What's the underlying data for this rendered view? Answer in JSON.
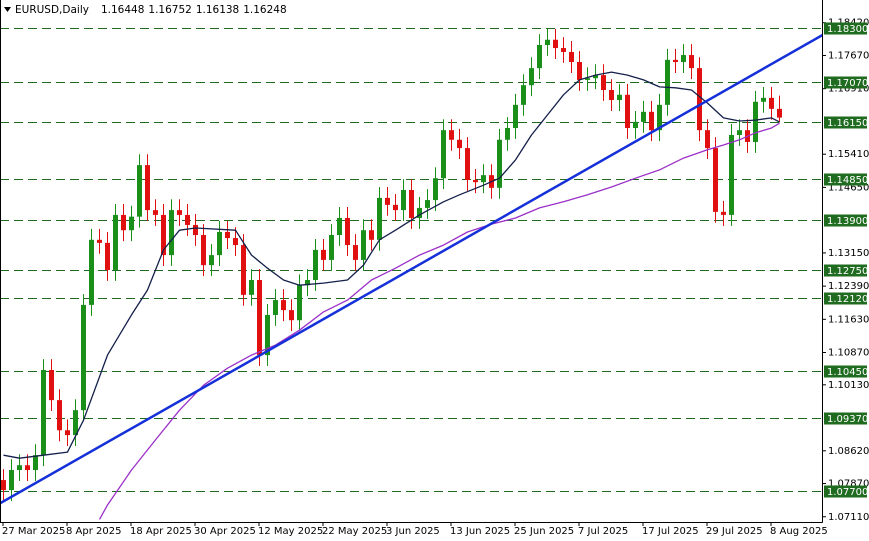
{
  "chart_data": {
    "type": "candlestick",
    "title": "EURUSD,Daily",
    "categories": [
      "27 Mar 2025",
      null,
      null,
      null,
      null,
      null,
      null,
      null,
      "8 Apr 2025",
      null,
      null,
      null,
      null,
      null,
      null,
      null,
      "18 Apr 2025",
      null,
      null,
      null,
      null,
      null,
      null,
      null,
      "30 Apr 2025",
      null,
      null,
      null,
      null,
      null,
      null,
      null,
      "12 May 2025",
      null,
      null,
      null,
      null,
      null,
      null,
      null,
      "22 May 2025",
      null,
      null,
      null,
      null,
      null,
      null,
      null,
      "3 Jun 2025",
      null,
      null,
      null,
      null,
      null,
      null,
      null,
      "13 Jun 2025",
      null,
      null,
      null,
      null,
      null,
      null,
      null,
      "25 Jun 2025",
      null,
      null,
      null,
      null,
      null,
      null,
      null,
      "7 Jul 2025",
      null,
      null,
      null,
      null,
      null,
      null,
      null,
      "17 Jul 2025",
      null,
      null,
      null,
      null,
      null,
      null,
      null,
      "29 Jul 2025",
      null,
      null,
      null,
      null,
      null,
      null,
      null,
      "8 Aug 2025",
      null
    ],
    "open": [
      1.0795,
      1.0772,
      1.0818,
      1.0829,
      1.0818,
      1.0852,
      1.1047,
      1.0978,
      1.0909,
      1.0898,
      1.0955,
      1.1196,
      1.1345,
      1.1338,
      1.1276,
      1.1402,
      1.1367,
      1.1398,
      1.1516,
      1.1413,
      1.1402,
      1.131,
      1.1413,
      1.1402,
      1.1379,
      1.1356,
      1.1287,
      1.131,
      1.1363,
      1.1349,
      1.1333,
      1.1219,
      1.1253,
      1.1081,
      1.1173,
      1.1207,
      1.1184,
      1.1161,
      1.1241,
      1.1253,
      1.1322,
      1.1299,
      1.1356,
      1.1395,
      1.1333,
      1.1299,
      1.1367,
      1.1345,
      1.1441,
      1.1425,
      1.1413,
      1.1459,
      1.1395,
      1.1418,
      1.1436,
      1.1486,
      1.1596,
      1.1574,
      1.1555,
      1.1482,
      1.1477,
      1.1493,
      1.1464,
      1.1574,
      1.1601,
      1.1654,
      1.1699,
      1.1738,
      1.1791,
      1.1803,
      1.1784,
      1.1775,
      1.1752,
      1.1711,
      1.1715,
      1.1722,
      1.1688,
      1.1665,
      1.1677,
      1.1601,
      1.1615,
      1.1638,
      1.1596,
      1.1654,
      1.1757,
      1.1752,
      1.1768,
      1.1738,
      1.1596,
      1.1555,
      1.1409,
      1.1402,
      1.1585,
      1.1596,
      1.1569,
      1.1661,
      1.167,
      1.16448
    ],
    "high": [
      1.082,
      1.0843,
      1.0854,
      1.0854,
      1.0877,
      1.1072,
      1.1072,
      1.1003,
      1.0934,
      1.098,
      1.1221,
      1.137,
      1.137,
      1.1363,
      1.1427,
      1.1427,
      1.1423,
      1.1541,
      1.1541,
      1.1438,
      1.1427,
      1.1438,
      1.1438,
      1.1427,
      1.1404,
      1.1381,
      1.1335,
      1.1388,
      1.1388,
      1.1374,
      1.1358,
      1.1278,
      1.1278,
      1.1198,
      1.1232,
      1.1232,
      1.1209,
      1.1266,
      1.1278,
      1.1347,
      1.1347,
      1.1381,
      1.142,
      1.142,
      1.1358,
      1.1392,
      1.1392,
      1.1466,
      1.1466,
      1.145,
      1.1484,
      1.1484,
      1.1443,
      1.1461,
      1.1511,
      1.1621,
      1.1621,
      1.1599,
      1.158,
      1.1507,
      1.1518,
      1.1518,
      1.1599,
      1.1626,
      1.1679,
      1.1724,
      1.1763,
      1.1816,
      1.1828,
      1.1828,
      1.1809,
      1.18,
      1.1777,
      1.174,
      1.1747,
      1.1747,
      1.1713,
      1.1702,
      1.1702,
      1.164,
      1.1663,
      1.1663,
      1.1679,
      1.1782,
      1.1782,
      1.1793,
      1.1793,
      1.1763,
      1.1621,
      1.158,
      1.1434,
      1.161,
      1.1621,
      1.1621,
      1.1686,
      1.1695,
      1.1695,
      1.16752
    ],
    "low": [
      1.0747,
      1.0747,
      1.0793,
      1.0793,
      1.0793,
      1.0827,
      1.0953,
      1.0884,
      1.0873,
      1.0873,
      1.093,
      1.1171,
      1.1313,
      1.1251,
      1.1251,
      1.1342,
      1.1342,
      1.1373,
      1.1388,
      1.1377,
      1.1285,
      1.1285,
      1.1377,
      1.1354,
      1.1331,
      1.1262,
      1.1262,
      1.1285,
      1.1324,
      1.1308,
      1.1194,
      1.1194,
      1.1056,
      1.1056,
      1.1148,
      1.1159,
      1.1136,
      1.1136,
      1.1216,
      1.1228,
      1.1274,
      1.1274,
      1.1331,
      1.1308,
      1.1274,
      1.1274,
      1.132,
      1.132,
      1.14,
      1.1388,
      1.1388,
      1.137,
      1.137,
      1.1393,
      1.1411,
      1.1461,
      1.1549,
      1.153,
      1.1457,
      1.1452,
      1.1452,
      1.1439,
      1.1439,
      1.1549,
      1.1576,
      1.1629,
      1.1674,
      1.1713,
      1.1766,
      1.1759,
      1.175,
      1.1727,
      1.1686,
      1.1686,
      1.169,
      1.1663,
      1.164,
      1.164,
      1.1576,
      1.1576,
      1.159,
      1.1571,
      1.1571,
      1.1629,
      1.1727,
      1.1727,
      1.1713,
      1.1571,
      1.153,
      1.1384,
      1.1377,
      1.1377,
      1.156,
      1.1544,
      1.1544,
      1.1636,
      1.162,
      1.16138
    ],
    "close": [
      1.0772,
      1.0818,
      1.0829,
      1.0818,
      1.0852,
      1.1047,
      1.0978,
      1.0909,
      1.0898,
      1.0955,
      1.1196,
      1.1345,
      1.1338,
      1.1276,
      1.1402,
      1.1367,
      1.1398,
      1.1516,
      1.1413,
      1.1402,
      1.131,
      1.1413,
      1.1402,
      1.1379,
      1.1356,
      1.1287,
      1.131,
      1.1363,
      1.1349,
      1.1333,
      1.1219,
      1.1253,
      1.1081,
      1.1173,
      1.1207,
      1.1184,
      1.1161,
      1.1241,
      1.1253,
      1.1322,
      1.1299,
      1.1356,
      1.1395,
      1.1333,
      1.1299,
      1.1367,
      1.1345,
      1.1441,
      1.1425,
      1.1413,
      1.1459,
      1.1395,
      1.1418,
      1.1436,
      1.1486,
      1.1596,
      1.1574,
      1.1555,
      1.1482,
      1.1477,
      1.1493,
      1.1464,
      1.1574,
      1.1601,
      1.1654,
      1.1699,
      1.1738,
      1.1791,
      1.1803,
      1.1784,
      1.1775,
      1.1752,
      1.1711,
      1.1715,
      1.1722,
      1.1688,
      1.1665,
      1.1677,
      1.1601,
      1.1615,
      1.1638,
      1.1596,
      1.1654,
      1.1757,
      1.1752,
      1.1768,
      1.1738,
      1.1596,
      1.1555,
      1.1409,
      1.1402,
      1.1585,
      1.1596,
      1.1569,
      1.1661,
      1.167,
      1.16448,
      1.16248
    ],
    "up_color": "#1a8f1a",
    "down_color": "#e01010",
    "ylim": [
      1.0699,
      1.1894
    ],
    "yticks": [
      {
        "value": 1.1842,
        "label": "1.18420"
      },
      {
        "value": 1.1767,
        "label": "1.17670"
      },
      {
        "value": 1.1691,
        "label": "1.16910"
      },
      {
        "value": 1.1541,
        "label": "1.15410"
      },
      {
        "value": 1.1465,
        "label": "1.14650"
      },
      {
        "value": 1.1315,
        "label": "1.13150"
      },
      {
        "value": 1.1239,
        "label": "1.12390"
      },
      {
        "value": 1.1163,
        "label": "1.11630"
      },
      {
        "value": 1.1087,
        "label": "1.10870"
      },
      {
        "value": 1.1013,
        "label": "1.10130"
      },
      {
        "value": 1.0862,
        "label": "1.08620"
      },
      {
        "value": 1.0787,
        "label": "1.07870"
      },
      {
        "value": 1.0711,
        "label": "1.07110"
      }
    ],
    "levels": [
      {
        "value": 1.183,
        "label": "1.18300"
      },
      {
        "value": 1.1707,
        "label": "1.17070"
      },
      {
        "value": 1.1615,
        "label": "1.16150"
      },
      {
        "value": 1.1485,
        "label": "1.14850"
      },
      {
        "value": 1.139,
        "label": "1.13900"
      },
      {
        "value": 1.1275,
        "label": "1.12750"
      },
      {
        "value": 1.1212,
        "label": "1.12120"
      },
      {
        "value": 1.1045,
        "label": "1.10450"
      },
      {
        "value": 1.0937,
        "label": "1.09370"
      },
      {
        "value": 1.077,
        "label": "1.07700"
      }
    ],
    "level_color": "#1f6b1f",
    "moving_averages": [
      {
        "color": "#14204a",
        "x": [
          0,
          2,
          5,
          8,
          10,
          13,
          16,
          18,
          20,
          22,
          24,
          29,
          31,
          33,
          35,
          37,
          40,
          43,
          45,
          47,
          49,
          52,
          55,
          57,
          60,
          62,
          64,
          66,
          68,
          70,
          72,
          74,
          76,
          78,
          80,
          82,
          84,
          86,
          88,
          90,
          92,
          94,
          96,
          97
        ],
        "values": [
          1.0852,
          1.0845,
          1.0852,
          1.0859,
          1.0932,
          1.1081,
          1.1173,
          1.123,
          1.1322,
          1.1367,
          1.1372,
          1.1367,
          1.131,
          1.128,
          1.1253,
          1.1241,
          1.1246,
          1.1253,
          1.1287,
          1.1345,
          1.1367,
          1.1402,
          1.1432,
          1.1448,
          1.147,
          1.1486,
          1.1528,
          1.1585,
          1.1631,
          1.1677,
          1.1711,
          1.1722,
          1.1729,
          1.1722,
          1.1711,
          1.1695,
          1.1693,
          1.1688,
          1.1658,
          1.1624,
          1.1617,
          1.1619,
          1.1624,
          1.1615
        ]
      },
      {
        "color": "#9b30c8",
        "x": [
          12,
          13,
          16,
          19,
          22,
          25,
          28,
          31,
          34,
          37,
          40,
          43,
          46,
          49,
          52,
          55,
          58,
          61,
          64,
          67,
          70,
          73,
          76,
          79,
          82,
          85,
          88,
          90,
          92,
          94,
          96,
          97
        ],
        "values": [
          1.0705,
          1.0738,
          1.0818,
          1.0887,
          1.0955,
          1.1012,
          1.1051,
          1.1081,
          1.1104,
          1.1138,
          1.118,
          1.1207,
          1.1253,
          1.128,
          1.131,
          1.1333,
          1.1363,
          1.1381,
          1.1395,
          1.1418,
          1.1432,
          1.1448,
          1.1466,
          1.1486,
          1.1505,
          1.1532,
          1.1551,
          1.1562,
          1.1574,
          1.159,
          1.1601,
          1.1612
        ]
      }
    ],
    "trendline": {
      "color": "#1530d8",
      "x": [
        -0.4,
        102.4
      ],
      "values": [
        1.0742,
        1.1814
      ]
    }
  }
}
